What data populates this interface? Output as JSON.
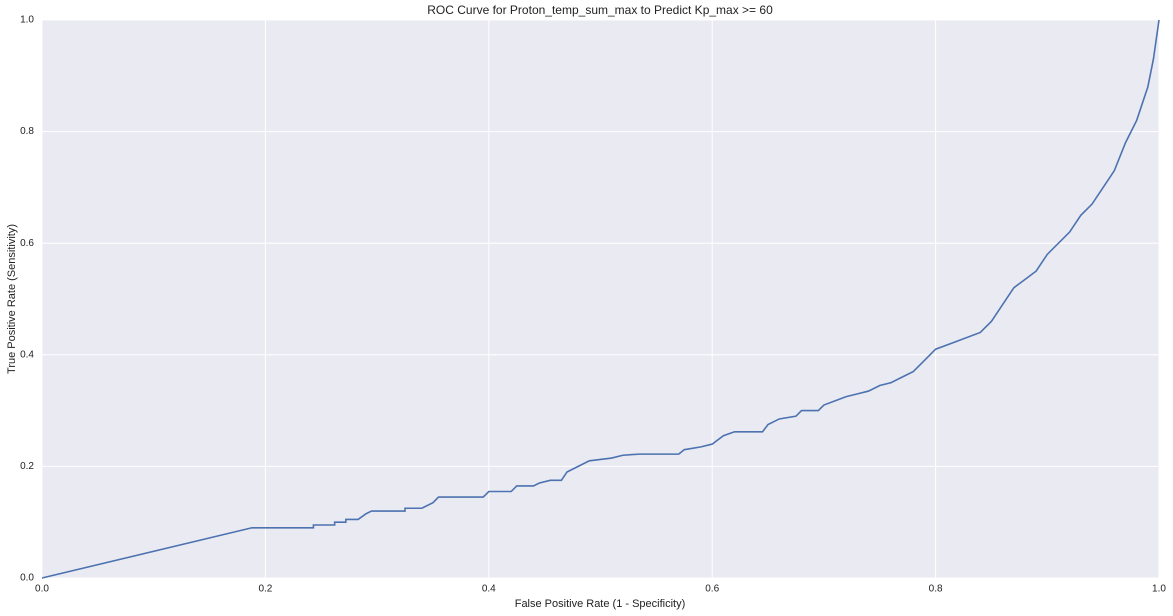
{
  "chart_data": {
    "type": "line",
    "title": "ROC Curve for Proton_temp_sum_max to Predict Kp_max >= 60",
    "x_label": "False Positive Rate (1 - Specificity)",
    "y_label": "True Positive Rate (Sensitivity)",
    "x": [
      0,
      0.188,
      0.243,
      0.243,
      0.262,
      0.262,
      0.272,
      0.272,
      0.283,
      0.29,
      0.295,
      0.325,
      0.325,
      0.34,
      0.35,
      0.355,
      0.395,
      0.4,
      0.42,
      0.425,
      0.44,
      0.445,
      0.455,
      0.465,
      0.47,
      0.48,
      0.49,
      0.51,
      0.52,
      0.535,
      0.57,
      0.575,
      0.59,
      0.6,
      0.61,
      0.62,
      0.645,
      0.65,
      0.66,
      0.675,
      0.68,
      0.695,
      0.7,
      0.72,
      0.73,
      0.74,
      0.75,
      0.76,
      0.77,
      0.78,
      0.79,
      0.8,
      0.82,
      0.84,
      0.85,
      0.86,
      0.87,
      0.88,
      0.89,
      0.9,
      0.92,
      0.93,
      0.94,
      0.95,
      0.96,
      0.97,
      0.98,
      0.99,
      0.995,
      1
    ],
    "series": [
      {
        "name": "ROC",
        "color": "#4c72b0",
        "values": [
          0,
          0.09,
          0.09,
          0.095,
          0.095,
          0.1,
          0.1,
          0.105,
          0.105,
          0.115,
          0.12,
          0.12,
          0.125,
          0.125,
          0.135,
          0.145,
          0.145,
          0.155,
          0.155,
          0.165,
          0.165,
          0.17,
          0.175,
          0.175,
          0.19,
          0.2,
          0.21,
          0.215,
          0.22,
          0.222,
          0.222,
          0.23,
          0.235,
          0.24,
          0.255,
          0.262,
          0.262,
          0.275,
          0.285,
          0.29,
          0.3,
          0.3,
          0.31,
          0.325,
          0.33,
          0.335,
          0.345,
          0.35,
          0.36,
          0.37,
          0.39,
          0.41,
          0.425,
          0.44,
          0.46,
          0.49,
          0.52,
          0.535,
          0.55,
          0.58,
          0.62,
          0.65,
          0.67,
          0.7,
          0.73,
          0.78,
          0.82,
          0.88,
          0.93,
          1
        ]
      }
    ],
    "xlim": [
      0,
      1
    ],
    "ylim": [
      0,
      1
    ],
    "xticks": [
      {
        "value": 0,
        "label": "0.0"
      },
      0.2,
      0.4,
      0.6,
      0.8,
      {
        "value": 1,
        "label": "1.0"
      }
    ],
    "yticks": [
      {
        "value": 0,
        "label": "0.0"
      },
      0.2,
      0.4,
      0.6,
      0.8,
      {
        "value": 1,
        "label": "1.0"
      }
    ],
    "grid": true
  }
}
